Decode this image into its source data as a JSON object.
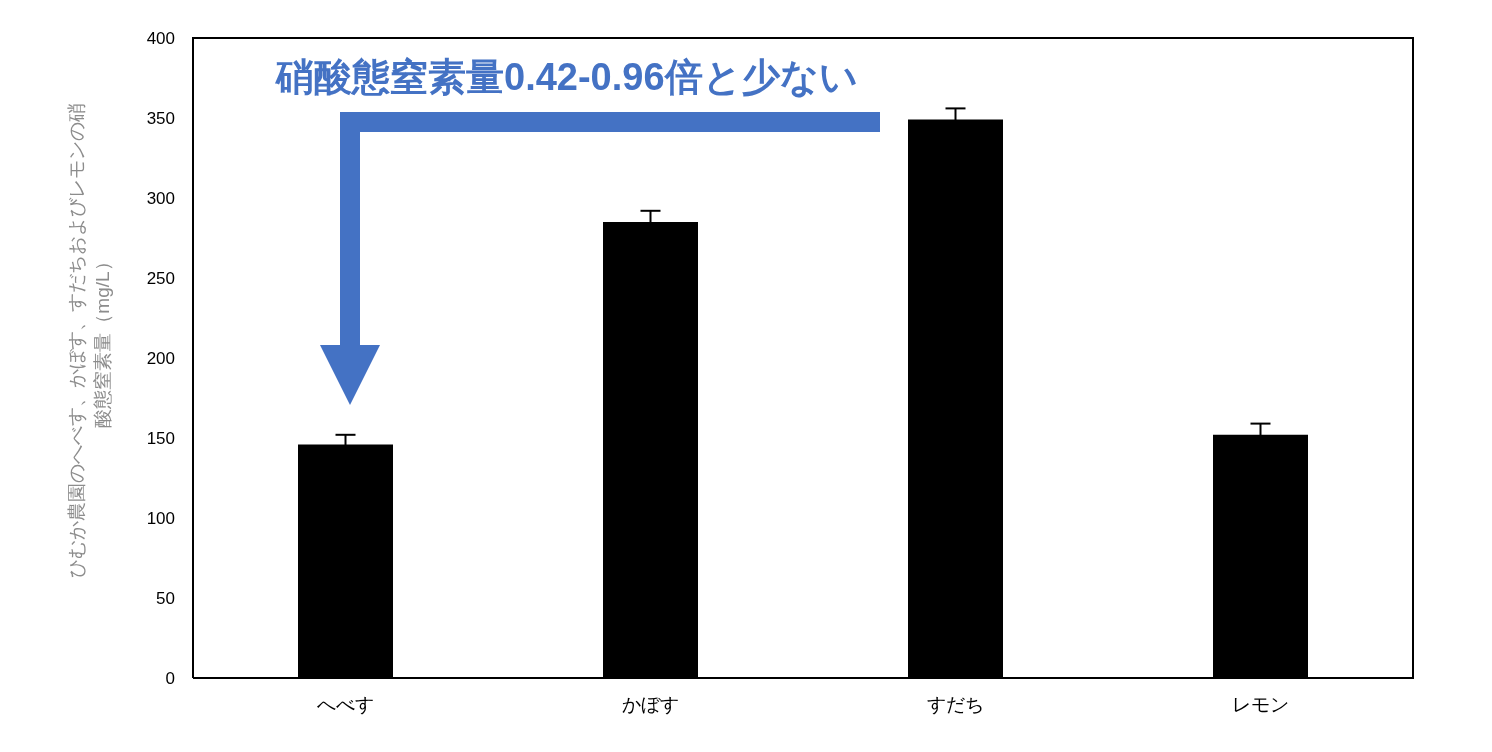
{
  "chart_data": {
    "type": "bar",
    "categories": [
      "へべす",
      "かぼす",
      "すだち",
      "レモン"
    ],
    "values": [
      146,
      285,
      349,
      152
    ],
    "errors": [
      6,
      7,
      7,
      7
    ],
    "color": "#000000",
    "ylim": [
      0,
      400
    ],
    "yticks": [
      0,
      50,
      100,
      150,
      200,
      250,
      300,
      350,
      400
    ],
    "ylabel": "ひむか農園のへべす、かぼす、すだちおよびレモンの硝酸態窒素量（mg/L）",
    "annotations": [
      "硝酸態窒素量0.42-0.96倍と少ない"
    ]
  }
}
